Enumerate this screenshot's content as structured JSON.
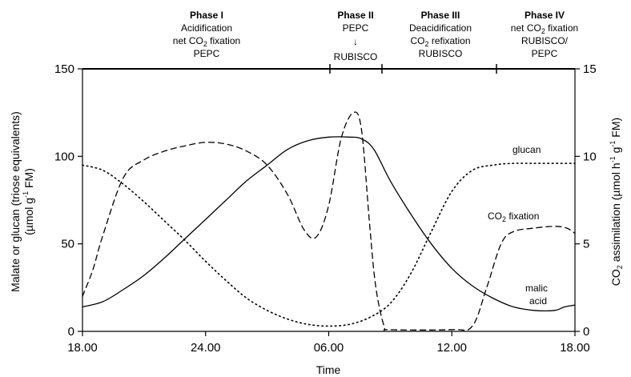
{
  "chart_data": {
    "type": "line",
    "xlabel": "Time",
    "ylabel": "Malate or glucan (triose equivalents) (µmol g⁻¹ FM)",
    "y2label": "CO₂ assimilation (µmol h⁻¹ g⁻¹ FM)",
    "x_range_hours": [
      0,
      24
    ],
    "xticks": [
      {
        "hour": 0,
        "label": "18.00"
      },
      {
        "hour": 6,
        "label": "24.00"
      },
      {
        "hour": 12,
        "label": "06.00"
      },
      {
        "hour": 18,
        "label": "12.00"
      },
      {
        "hour": 24,
        "label": "18.00"
      }
    ],
    "ylim": [
      0,
      150
    ],
    "yticks": [
      0,
      50,
      100,
      150
    ],
    "y2lim": [
      0,
      15
    ],
    "y2ticks": [
      0,
      5,
      10,
      15
    ],
    "phases": [
      {
        "name": "Phase I",
        "lines": [
          "Acidification",
          "net CO₂ fixation",
          "PEPC"
        ],
        "start": 0,
        "end": 12
      },
      {
        "name": "Phase II",
        "lines": [
          "PEPC",
          "↓",
          "RUBISCO"
        ],
        "start": 12,
        "end": 14
      },
      {
        "name": "Phase III",
        "lines": [
          "Deacidification",
          "CO₂ refixation",
          "RUBISCO"
        ],
        "start": 14,
        "end": 19.5
      },
      {
        "name": "Phase IV",
        "lines": [
          "net CO₂ fixation",
          "RUBISCO/",
          "PEPC"
        ],
        "start": 19.5,
        "end": 24
      }
    ],
    "series": [
      {
        "name": "malic acid",
        "axis": "left",
        "style": "solid",
        "points": [
          [
            0,
            14
          ],
          [
            1,
            17
          ],
          [
            2,
            24
          ],
          [
            3,
            32
          ],
          [
            4,
            42
          ],
          [
            5,
            53
          ],
          [
            6,
            64
          ],
          [
            7,
            75
          ],
          [
            8,
            86
          ],
          [
            9,
            95
          ],
          [
            10,
            104
          ],
          [
            11,
            109
          ],
          [
            12,
            111
          ],
          [
            13,
            111
          ],
          [
            13.6,
            110
          ],
          [
            14.2,
            104
          ],
          [
            15,
            86
          ],
          [
            16,
            67
          ],
          [
            17,
            50
          ],
          [
            18,
            36
          ],
          [
            19,
            26
          ],
          [
            20,
            19
          ],
          [
            21,
            14
          ],
          [
            22,
            12
          ],
          [
            23,
            12
          ],
          [
            23.5,
            14
          ],
          [
            24,
            15
          ]
        ]
      },
      {
        "name": "glucan",
        "axis": "left",
        "style": "dotted",
        "points": [
          [
            0,
            95
          ],
          [
            1,
            92
          ],
          [
            2,
            84
          ],
          [
            3,
            74
          ],
          [
            4,
            63
          ],
          [
            5,
            52
          ],
          [
            6,
            40
          ],
          [
            7,
            29
          ],
          [
            8,
            19
          ],
          [
            9,
            12
          ],
          [
            10,
            7
          ],
          [
            11,
            4
          ],
          [
            12,
            3
          ],
          [
            13,
            4
          ],
          [
            14,
            8
          ],
          [
            15,
            16
          ],
          [
            16,
            33
          ],
          [
            17,
            57
          ],
          [
            18,
            80
          ],
          [
            19,
            92
          ],
          [
            20,
            95
          ],
          [
            21,
            96
          ],
          [
            22,
            96
          ],
          [
            24,
            96
          ]
        ]
      },
      {
        "name": "CO₂ fixation",
        "axis": "right",
        "style": "dashed",
        "points": [
          [
            0,
            2
          ],
          [
            0.5,
            3.5
          ],
          [
            1,
            5.5
          ],
          [
            2,
            8.8
          ],
          [
            3,
            9.8
          ],
          [
            4,
            10.3
          ],
          [
            5,
            10.6
          ],
          [
            6,
            10.8
          ],
          [
            7,
            10.7
          ],
          [
            8,
            10.3
          ],
          [
            9,
            9.5
          ],
          [
            10,
            7.8
          ],
          [
            10.8,
            5.8
          ],
          [
            11.4,
            5.4
          ],
          [
            12,
            7.2
          ],
          [
            12.6,
            11
          ],
          [
            13.2,
            12.5
          ],
          [
            13.6,
            11.5
          ],
          [
            14,
            6
          ],
          [
            14.3,
            2.5
          ],
          [
            14.7,
            0.3
          ],
          [
            15,
            0.1
          ],
          [
            18,
            0.1
          ],
          [
            19,
            0.3
          ],
          [
            19.7,
            2.5
          ],
          [
            20.4,
            5
          ],
          [
            21,
            5.7
          ],
          [
            22,
            5.9
          ],
          [
            23,
            6.0
          ],
          [
            23.6,
            5.9
          ],
          [
            24,
            5.6
          ]
        ]
      }
    ],
    "annotations": {
      "glucan": "glucan",
      "co2_a": "CO",
      "co2_sub": "2",
      "co2_b": " fixation",
      "malic1": "malic",
      "malic2": "acid"
    }
  }
}
